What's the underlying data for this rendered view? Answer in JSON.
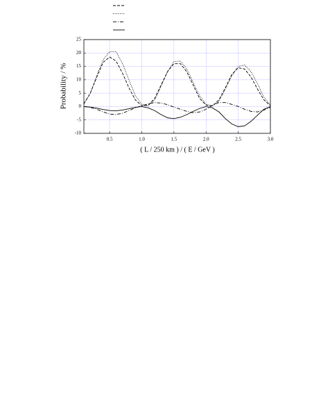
{
  "chart_data": {
    "type": "line",
    "xlabel": "( L / 250 km ) / ( E / GeV )",
    "ylabel": "Probability / %",
    "x": [
      0.1,
      0.2,
      0.3,
      0.4,
      0.5,
      0.6,
      0.7,
      0.8,
      0.9,
      1.0,
      1.1,
      1.2,
      1.3,
      1.4,
      1.5,
      1.6,
      1.7,
      1.8,
      1.9,
      2.0,
      2.1,
      2.2,
      2.3,
      2.4,
      2.5,
      2.6,
      2.7,
      2.8,
      2.9,
      3.0
    ],
    "series": [
      {
        "color": "#000000",
        "dash": "dashed",
        "values": [
          1,
          5,
          11,
          16.5,
          18.5,
          17,
          12.5,
          7,
          2.5,
          0.3,
          0.5,
          3,
          8,
          13,
          16,
          16,
          13,
          8,
          3,
          0.5,
          0.3,
          2.5,
          7,
          12,
          14.5,
          14,
          11,
          6.5,
          2.5,
          0.3
        ]
      },
      {
        "color": "#000000",
        "dash": "dotted",
        "values": [
          1,
          5,
          11.5,
          17.5,
          20.5,
          20.5,
          16,
          10,
          4,
          0.8,
          0.3,
          2.5,
          7.5,
          13,
          16.8,
          17,
          14,
          9,
          4,
          0.8,
          0.2,
          2,
          6.5,
          11.5,
          15,
          15.5,
          13,
          8.5,
          3.5,
          0.5
        ]
      },
      {
        "color": "#000000",
        "dash": "dashdot",
        "values": [
          0,
          -0.3,
          -1,
          -2,
          -2.8,
          -3,
          -2.5,
          -1.5,
          -0.5,
          0.3,
          1,
          1.5,
          1.3,
          0.7,
          -0.2,
          -1,
          -1.8,
          -2.3,
          -2,
          -1,
          0.5,
          1.5,
          1.5,
          0.8,
          0,
          -1,
          -1.8,
          -2,
          -1.3,
          -0.3
        ]
      },
      {
        "color": "#000000",
        "dash": "solid",
        "values": [
          0,
          -0.2,
          -0.6,
          -1.1,
          -1.5,
          -1.6,
          -1.3,
          -0.8,
          -0.3,
          0,
          -0.5,
          -1.5,
          -3,
          -4.2,
          -4.5,
          -4,
          -3,
          -1.8,
          -0.7,
          0,
          -0.5,
          -2,
          -4.5,
          -6.5,
          -7.5,
          -7.2,
          -5.5,
          -3.2,
          -1,
          0
        ]
      }
    ],
    "xlim": [
      0.1,
      3.0
    ],
    "xticks": [
      {
        "value": 0.5,
        "label": "0.5"
      },
      {
        "value": 1.0,
        "label": "1.0"
      },
      {
        "value": 1.5,
        "label": "1.5"
      },
      {
        "value": 2.0,
        "label": "2.0"
      },
      {
        "value": 2.5,
        "label": "2.5"
      },
      {
        "value": 3.0,
        "label": "3.0"
      }
    ],
    "ylim": [
      -10,
      25
    ],
    "yticks": [
      -10,
      -5,
      0,
      5,
      10,
      15,
      20,
      25
    ],
    "grid": true
  }
}
